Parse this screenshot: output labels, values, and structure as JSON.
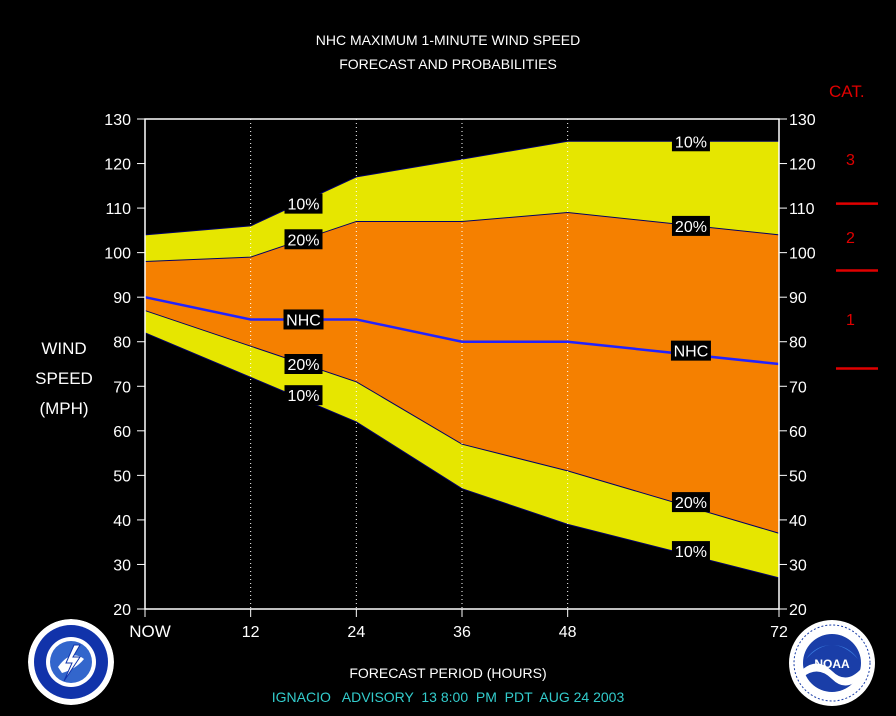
{
  "title": {
    "line1": "NHC MAXIMUM 1-MINUTE WIND SPEED",
    "line2": "FORECAST AND PROBABILITIES"
  },
  "ylabel": {
    "line1": "WIND",
    "line2": "SPEED",
    "line3": "(MPH)"
  },
  "xlabel": "FORECAST PERIOD (HOURS)",
  "advisory": "IGNACIO   ADVISORY  13 8:00  PM  PDT  AUG 24 2003",
  "category": {
    "header": "CAT.",
    "labels": [
      "3",
      "2",
      "1"
    ],
    "color": "#e00000"
  },
  "logos": {
    "left": "national weather service seal",
    "right": "noaa seal",
    "left_text": "NATIONAL WEATHER SERVICE",
    "right_text": "NOAA"
  },
  "colors": {
    "background": "#000000",
    "outer_band": "#e6e600",
    "inner_band": "#f58000",
    "nhc_line": "#2222ff",
    "category_lines": "#e00000",
    "text": "#ffffff",
    "footer": "#33cccc"
  },
  "chart_data": {
    "type": "area",
    "xlim": [
      0,
      72
    ],
    "ylim": [
      20,
      130
    ],
    "x_ticks": [
      0,
      12,
      24,
      36,
      48,
      72
    ],
    "x_tick_labels": [
      "NOW",
      "12",
      "24",
      "36",
      "48",
      "72"
    ],
    "y_ticks": [
      20,
      30,
      40,
      50,
      60,
      70,
      80,
      90,
      100,
      110,
      120,
      130
    ],
    "gridlines_x": [
      12,
      24,
      36,
      48
    ],
    "x": [
      0,
      12,
      24,
      36,
      48,
      72
    ],
    "series": [
      {
        "name": "10%",
        "upper": [
          104,
          106,
          117,
          121,
          125,
          125
        ],
        "lower": [
          82,
          72,
          62,
          47,
          39,
          27
        ]
      },
      {
        "name": "20%",
        "upper": [
          98,
          99,
          107,
          107,
          109,
          104
        ],
        "lower": [
          87,
          79,
          71,
          57,
          51,
          37
        ]
      },
      {
        "name": "NHC",
        "values": [
          90,
          85,
          85,
          80,
          80,
          75
        ]
      }
    ],
    "band_labels": [
      {
        "text": "10%",
        "x": 18,
        "y": 111
      },
      {
        "text": "20%",
        "x": 18,
        "y": 103
      },
      {
        "text": "NHC",
        "x": 18,
        "y": 85
      },
      {
        "text": "20%",
        "x": 18,
        "y": 75
      },
      {
        "text": "10%",
        "x": 18,
        "y": 68
      },
      {
        "text": "10%",
        "x": 62,
        "y": 125
      },
      {
        "text": "20%",
        "x": 62,
        "y": 106
      },
      {
        "text": "NHC",
        "x": 62,
        "y": 78
      },
      {
        "text": "20%",
        "x": 62,
        "y": 44
      },
      {
        "text": "10%",
        "x": 62,
        "y": 33
      }
    ],
    "category_thresholds": [
      111,
      96,
      74
    ]
  }
}
